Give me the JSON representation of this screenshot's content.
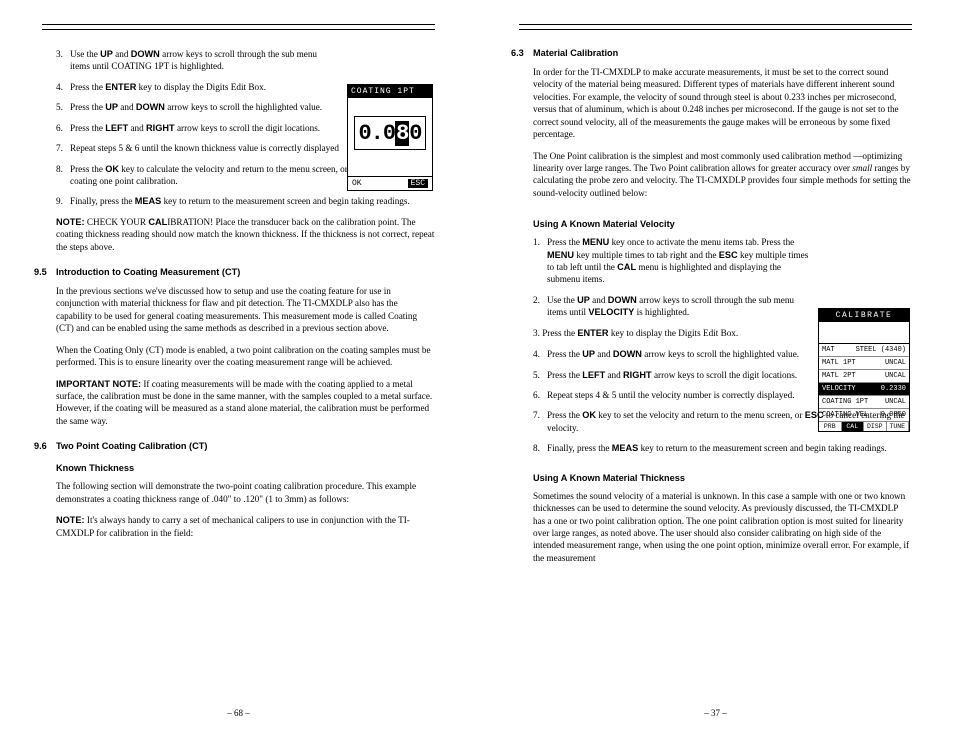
{
  "left": {
    "list1": [
      {
        "n": "3.",
        "t": "Use the <b>UP</b> and <b>DOWN</b> arrow keys to scroll through the sub menu items until COATING 1PT is highlighted."
      },
      {
        "n": "4.",
        "t": "Press the <b>ENTER</b> key to display the Digits Edit Box."
      },
      {
        "n": "5.",
        "t": "Press the <b>UP</b> and <b>DOWN</b> arrow keys to scroll the highlighted value."
      },
      {
        "n": "6.",
        "t": "Press the <b>LEFT</b> and <b>RIGHT</b> arrow keys to scroll the digit locations."
      },
      {
        "n": "7.",
        "t": "Repeat steps 5 & 6 until the known thickness value is correctly displayed"
      }
    ],
    "list1b": [
      {
        "n": "8.",
        "t": "Press the <b>OK</b> key to calculate the velocity and return to the menu screen, or <b>ESC</b> to cancel the coating one point calibration."
      },
      {
        "n": "9.",
        "t": "Finally, press the <b>MEAS</b> key to return to the measurement screen and begin taking readings."
      }
    ],
    "note1": "<b>NOTE:</b> CHECK YOUR <b>CAL</b>IBRATION! Place the transducer back on the calibration point. The coating thickness reading should now match the known thickness. If the thickness is not correct, repeat the steps above.",
    "sec95_num": "9.5",
    "sec95_title": "Introduction to Coating Measurement (CT)",
    "sec95_p1": "In the previous sections we've discussed how to setup and use the coating feature for use in conjunction with material thickness for flaw and pit detection. The TI-CMXDLP also has the capability to be used for general coating measurements. This measurement mode is called Coating (CT) and can be enabled using the same methods as described in a previous section above.",
    "sec95_p2": "When the Coating Only (CT) mode is enabled, a two point calibration on the coating samples must be performed. This is to ensure linearity over the coating measurement range will be achieved.",
    "sec95_p3": "<b>IMPORTANT NOTE:</b> If coating measurements will be made with the coating applied to a metal surface, the calibration must be done in the same manner, with the samples coupled to a metal surface. However, if the coating will be measured as a stand alone material, the calibration must be performed the same way.",
    "sec96_num": "9.6",
    "sec96_title": "Two Point Coating Calibration (CT)",
    "sec96_sub": "Known Thickness",
    "sec96_p1": "The following section will demonstrate the two-point coating calibration procedure. This example demonstrates a coating thickness range of .040\" to .120\" (1 to 3mm) as follows:",
    "sec96_p2": "<b>NOTE:</b> It's always handy to carry a set of mechanical calipers to use in conjunction with the TI-CMXDLP for calibration in the field:",
    "pagenum": "– 68 –",
    "fig1": {
      "title": "COATING 1PT",
      "value_left": "0.0",
      "value_hl": "8",
      "value_right": "0",
      "ok": "OK",
      "esc": "ESC"
    }
  },
  "right": {
    "sec63_num": "6.3",
    "sec63_title": "Material Calibration",
    "sec63_p1": "In order for the TI-CMXDLP to make accurate measurements, it must be set to the correct sound velocity of the material being measured. Different types of materials have different inherent sound velocities. For example, the velocity of sound through steel is about 0.233 inches per microsecond, versus that of aluminum, which is about 0.248 inches per microsecond. If the gauge is not set to the correct sound velocity, all of the measurements the gauge makes will be erroneous by some fixed percentage.",
    "sec63_p2": "The One Point calibration is the simplest and most commonly used calibration method —optimizing linearity over large ranges. The Two Point calibration allows for greater accuracy over <em>small</em> ranges by calculating the probe zero and velocity. The TI-CMXDLP provides four simple methods for setting the sound-velocity outlined below:",
    "sub1": "Using A Known Material Velocity",
    "list1": [
      {
        "n": "1.",
        "t": "Press the <b>MENU</b> key once to activate the menu items tab. Press the <b>MENU</b> key multiple times to tab right and the <b>ESC</b> key multiple times to tab left until the <b>CAL</b> menu is highlighted and displaying the submenu items."
      },
      {
        "n": "2.",
        "t": "Use the <b>UP</b> and <b>DOWN</b> arrow keys to scroll through the sub menu items until <b>VELOCITY</b> is highlighted."
      }
    ],
    "list1b": [
      {
        "n": "4.",
        "t": "Press the <b>UP</b> and <b>DOWN</b> arrow keys to scroll the highlighted value."
      }
    ],
    "item3": "3. Press the <b>ENTER</b> key to display the Digits Edit Box.",
    "list1c": [
      {
        "n": "5.",
        "t": "Press the <b>LEFT</b> and <b>RIGHT</b> arrow keys to scroll the digit locations."
      },
      {
        "n": "6.",
        "t": "Repeat steps 4 & 5 until the velocity number is correctly displayed."
      },
      {
        "n": "7.",
        "t": "Press the <b>OK</b> key to set the velocity and return to the menu screen, or <b>ESC</b> to cancel entering the velocity."
      },
      {
        "n": "8.",
        "t": "Finally, press the <b>MEAS</b> key to return to the measurement screen and begin taking readings."
      }
    ],
    "sub2": "Using A Known Material Thickness",
    "p_sub2": "Sometimes the sound velocity of a material is unknown. In this case a sample with one or two known thicknesses can be used to determine the sound velocity. As previously discussed, the TI-CMXDLP has a one or two point calibration option. The one point calibration option is most suited for linearity over large ranges, as noted above. The user should also consider calibrating on high side of the intended measurement range, when using the one point option, minimize overall error. For example, if the measurement",
    "pagenum": "– 37 –",
    "fig2": {
      "title": "CALIBRATE",
      "rows": [
        {
          "l": "MAT",
          "r": "STEEL (4340)"
        },
        {
          "l": "MATL 1PT",
          "r": "UNCAL"
        },
        {
          "l": "MATL 2PT",
          "r": "UNCAL"
        },
        {
          "l": "VELOCITY",
          "r": "0.2330",
          "hl": true
        },
        {
          "l": "COATING 1PT",
          "r": "UNCAL"
        },
        {
          "l": "COATING VEL",
          "r": "0.0850"
        }
      ],
      "tabs": [
        "PRB",
        "CAL",
        "DISP",
        "TUNE"
      ],
      "active_tab": 1
    }
  }
}
